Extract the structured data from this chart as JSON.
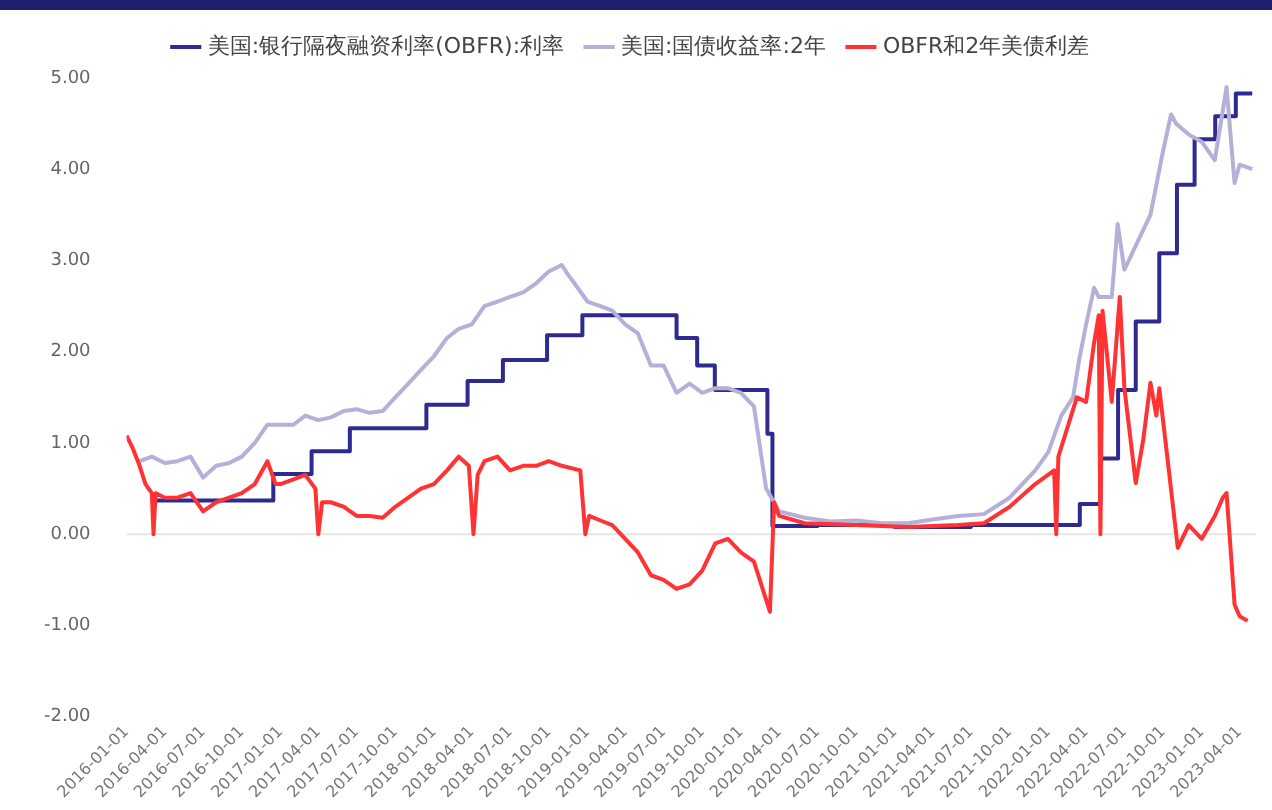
{
  "chart_data": {
    "type": "line",
    "legend": "top",
    "grid": false,
    "xlim": [
      "2016-01-01",
      "2023-05-10"
    ],
    "xticks": [
      "2016-01-01",
      "2016-04-01",
      "2016-07-01",
      "2016-10-01",
      "2017-01-01",
      "2017-04-01",
      "2017-07-01",
      "2017-10-01",
      "2018-01-01",
      "2018-04-01",
      "2018-07-01",
      "2018-10-01",
      "2019-01-01",
      "2019-04-01",
      "2019-07-01",
      "2019-10-01",
      "2020-01-01",
      "2020-04-01",
      "2020-07-01",
      "2020-10-01",
      "2021-01-01",
      "2021-04-01",
      "2021-07-01",
      "2021-10-01",
      "2022-01-01",
      "2022-04-01",
      "2022-07-01",
      "2022-10-01",
      "2023-01-01",
      "2023-04-01"
    ],
    "ylim": [
      -2,
      5
    ],
    "yticks": [
      {
        "value": -2,
        "label": "-2.00"
      },
      {
        "value": -1,
        "label": "-1.00"
      },
      {
        "value": 0,
        "label": "0.00"
      },
      {
        "value": 1,
        "label": "1.00"
      },
      {
        "value": 2,
        "label": "2.00"
      },
      {
        "value": 3,
        "label": "3.00"
      },
      {
        "value": 4,
        "label": "4.00"
      },
      {
        "value": 5,
        "label": "5.00"
      }
    ],
    "ref_lines": [
      {
        "axis": "y",
        "value": 0,
        "color": "#e6e6e6"
      }
    ],
    "series": [
      {
        "name": "美国:银行隔夜融资利率(OBFR):利率",
        "type": "step",
        "color": "#2e2a8f",
        "x": [
          "2016-03-01",
          "2016-12-15",
          "2017-03-16",
          "2017-06-15",
          "2017-12-14",
          "2018-03-22",
          "2018-06-14",
          "2018-09-27",
          "2018-12-20",
          "2019-08-01",
          "2019-09-19",
          "2019-10-31",
          "2020-03-04",
          "2020-03-16",
          "2020-07-01",
          "2021-01-01",
          "2021-07-01",
          "2022-03-17",
          "2022-05-05",
          "2022-06-16",
          "2022-07-28",
          "2022-09-22",
          "2022-11-03",
          "2022-12-15",
          "2023-02-02",
          "2023-03-23",
          "2023-05-01"
        ],
        "values": [
          0.37,
          0.66,
          0.91,
          1.16,
          1.42,
          1.68,
          1.91,
          2.18,
          2.4,
          2.15,
          1.85,
          1.58,
          1.1,
          0.09,
          0.1,
          0.08,
          0.1,
          0.33,
          0.83,
          1.58,
          2.33,
          3.08,
          3.83,
          4.33,
          4.58,
          4.83,
          4.83
        ]
      },
      {
        "name": "美国:国债收益率:2年",
        "color": "#b4b0d8",
        "x": [
          "2016-02-01",
          "2016-03-01",
          "2016-04-01",
          "2016-05-01",
          "2016-06-01",
          "2016-07-01",
          "2016-08-01",
          "2016-09-01",
          "2016-10-01",
          "2016-11-01",
          "2016-12-01",
          "2017-01-01",
          "2017-02-01",
          "2017-03-01",
          "2017-04-01",
          "2017-05-01",
          "2017-06-01",
          "2017-07-01",
          "2017-08-01",
          "2017-09-01",
          "2017-10-01",
          "2017-11-01",
          "2017-12-01",
          "2018-01-01",
          "2018-02-01",
          "2018-03-01",
          "2018-04-01",
          "2018-05-01",
          "2018-06-01",
          "2018-07-01",
          "2018-08-01",
          "2018-09-01",
          "2018-10-01",
          "2018-11-01",
          "2018-11-15",
          "2018-12-01",
          "2019-01-01",
          "2019-02-01",
          "2019-03-01",
          "2019-04-01",
          "2019-05-01",
          "2019-06-01",
          "2019-07-01",
          "2019-08-01",
          "2019-09-01",
          "2019-10-01",
          "2019-11-01",
          "2019-12-01",
          "2020-01-01",
          "2020-02-01",
          "2020-03-01",
          "2020-04-01",
          "2020-06-01",
          "2020-08-01",
          "2020-10-01",
          "2020-12-01",
          "2021-02-01",
          "2021-04-01",
          "2021-06-01",
          "2021-08-01",
          "2021-10-01",
          "2021-12-01",
          "2022-01-01",
          "2022-02-01",
          "2022-03-01",
          "2022-03-15",
          "2022-04-01",
          "2022-04-20",
          "2022-05-01",
          "2022-06-01",
          "2022-06-15",
          "2022-07-01",
          "2022-08-01",
          "2022-09-01",
          "2022-10-01",
          "2022-10-20",
          "2022-11-01",
          "2022-12-01",
          "2023-01-01",
          "2023-02-01",
          "2023-03-01",
          "2023-03-20",
          "2023-04-01",
          "2023-05-01"
        ],
        "values": [
          0.8,
          0.85,
          0.78,
          0.8,
          0.85,
          0.62,
          0.75,
          0.78,
          0.85,
          1.0,
          1.2,
          1.2,
          1.2,
          1.3,
          1.25,
          1.28,
          1.35,
          1.37,
          1.33,
          1.35,
          1.5,
          1.65,
          1.8,
          1.95,
          2.15,
          2.25,
          2.3,
          2.5,
          2.55,
          2.6,
          2.65,
          2.75,
          2.88,
          2.95,
          2.85,
          2.75,
          2.55,
          2.5,
          2.45,
          2.3,
          2.2,
          1.85,
          1.85,
          1.55,
          1.65,
          1.55,
          1.6,
          1.6,
          1.55,
          1.4,
          0.5,
          0.25,
          0.18,
          0.14,
          0.15,
          0.12,
          0.12,
          0.16,
          0.2,
          0.22,
          0.4,
          0.7,
          0.9,
          1.3,
          1.5,
          1.9,
          2.3,
          2.7,
          2.6,
          2.6,
          3.4,
          2.9,
          3.2,
          3.5,
          4.2,
          4.6,
          4.5,
          4.38,
          4.3,
          4.1,
          4.9,
          3.85,
          4.05,
          4.0
        ]
      },
      {
        "name": "OBFR和2年美债利差",
        "color": "#ff3333",
        "x": [
          "2016-01-01",
          "2016-01-15",
          "2016-02-01",
          "2016-02-15",
          "2016-03-01",
          "2016-03-05",
          "2016-03-10",
          "2016-04-01",
          "2016-05-01",
          "2016-06-01",
          "2016-07-01",
          "2016-08-01",
          "2016-09-01",
          "2016-10-01",
          "2016-11-01",
          "2016-12-01",
          "2016-12-20",
          "2017-01-01",
          "2017-02-01",
          "2017-03-01",
          "2017-03-25",
          "2017-04-01",
          "2017-04-10",
          "2017-05-01",
          "2017-06-01",
          "2017-07-01",
          "2017-08-01",
          "2017-09-01",
          "2017-10-01",
          "2017-11-01",
          "2017-12-01",
          "2018-01-01",
          "2018-02-01",
          "2018-03-01",
          "2018-03-25",
          "2018-04-05",
          "2018-04-15",
          "2018-05-01",
          "2018-06-01",
          "2018-07-01",
          "2018-08-01",
          "2018-09-01",
          "2018-10-01",
          "2018-11-01",
          "2018-12-15",
          "2018-12-27",
          "2019-01-05",
          "2019-02-01",
          "2019-03-01",
          "2019-04-01",
          "2019-05-01",
          "2019-06-01",
          "2019-07-01",
          "2019-08-01",
          "2019-09-01",
          "2019-10-01",
          "2019-11-01",
          "2019-12-01",
          "2020-01-01",
          "2020-02-01",
          "2020-03-10",
          "2020-03-20",
          "2020-04-01",
          "2020-06-01",
          "2020-10-01",
          "2021-02-01",
          "2021-06-01",
          "2021-08-01",
          "2021-10-01",
          "2021-12-01",
          "2022-01-15",
          "2022-01-20",
          "2022-01-25",
          "2022-03-10",
          "2022-04-01",
          "2022-04-20",
          "2022-05-01",
          "2022-05-05",
          "2022-05-10",
          "2022-06-01",
          "2022-06-20",
          "2022-07-01",
          "2022-07-28",
          "2022-08-15",
          "2022-09-01",
          "2022-09-15",
          "2022-09-22",
          "2022-10-15",
          "2022-11-05",
          "2022-12-01",
          "2023-01-01",
          "2023-02-01",
          "2023-02-20",
          "2023-03-01",
          "2023-03-20",
          "2023-04-01",
          "2023-04-20"
        ],
        "values": [
          1.08,
          0.95,
          0.75,
          0.55,
          0.45,
          0.0,
          0.45,
          0.4,
          0.4,
          0.45,
          0.25,
          0.35,
          0.4,
          0.45,
          0.55,
          0.8,
          0.55,
          0.55,
          0.6,
          0.65,
          0.5,
          0.0,
          0.35,
          0.35,
          0.3,
          0.2,
          0.2,
          0.18,
          0.3,
          0.4,
          0.5,
          0.55,
          0.7,
          0.85,
          0.75,
          0.0,
          0.65,
          0.8,
          0.85,
          0.7,
          0.75,
          0.75,
          0.8,
          0.75,
          0.7,
          0.0,
          0.2,
          0.15,
          0.1,
          -0.05,
          -0.2,
          -0.45,
          -0.5,
          -0.6,
          -0.55,
          -0.4,
          -0.1,
          -0.05,
          -0.2,
          -0.3,
          -0.85,
          0.35,
          0.2,
          0.12,
          0.1,
          0.08,
          0.1,
          0.12,
          0.3,
          0.55,
          0.7,
          0.0,
          0.85,
          1.5,
          1.45,
          2.1,
          2.4,
          0.0,
          2.45,
          1.45,
          2.6,
          1.6,
          0.56,
          1.04,
          1.66,
          1.3,
          1.6,
          0.69,
          -0.15,
          0.1,
          -0.05,
          0.2,
          0.4,
          0.45,
          -0.77,
          -0.9,
          -0.95
        ]
      }
    ]
  }
}
